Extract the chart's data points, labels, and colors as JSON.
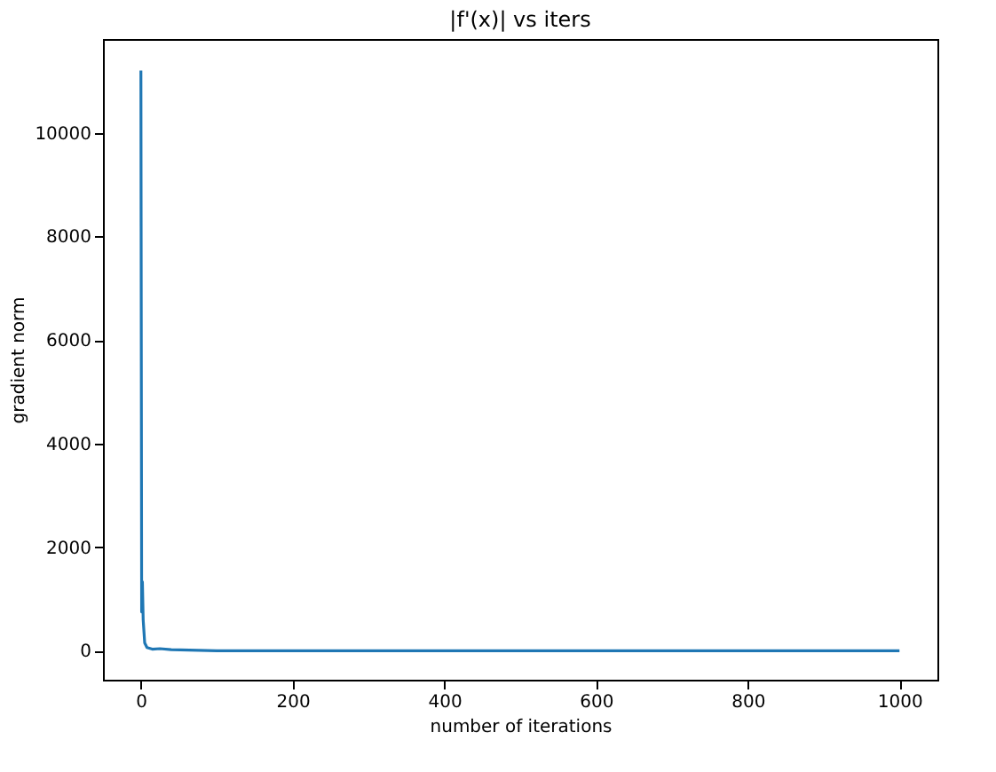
{
  "chart_data": {
    "type": "line",
    "title": "|f'(x)| vs iters",
    "xlabel": "number of iterations",
    "ylabel": "gradient norm",
    "series": [
      {
        "color": "#1f77b4",
        "x": [
          0,
          1,
          2,
          3,
          5,
          8,
          15,
          25,
          40,
          100,
          200,
          1000
        ],
        "values": [
          11200,
          750,
          1330,
          600,
          150,
          60,
          30,
          40,
          20,
          0,
          0,
          0
        ]
      }
    ],
    "xlim": [
      -50,
      1050
    ],
    "xticks": [
      0,
      200,
      400,
      600,
      800,
      1000
    ],
    "ylim": [
      -560,
      11810
    ],
    "yticks": [
      0,
      2000,
      4000,
      6000,
      8000,
      10000
    ],
    "grid": false,
    "legend": false
  }
}
